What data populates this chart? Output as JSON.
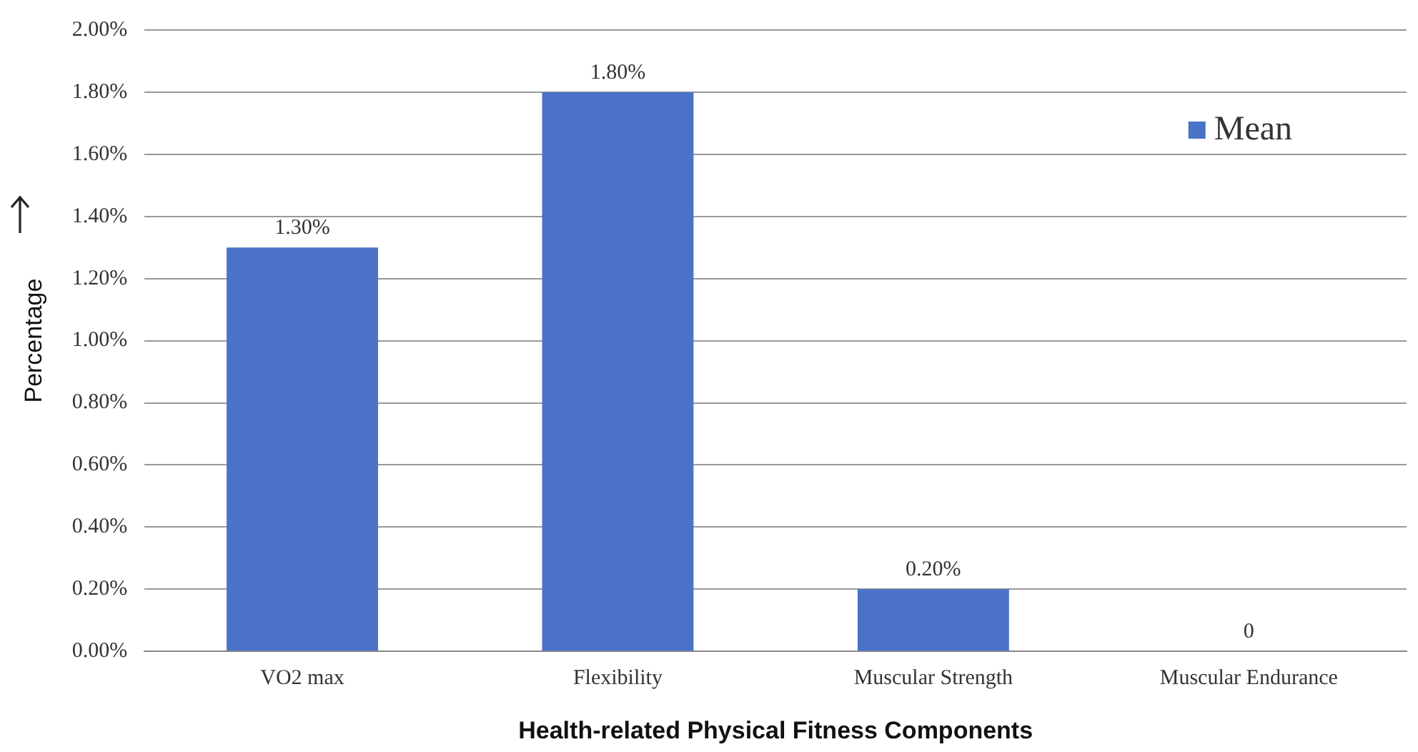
{
  "chart_data": {
    "type": "bar",
    "xlabel": "Health-related Physical Fitness Components",
    "ylabel": "Percentage",
    "categories": [
      "VO2 max",
      "Flexibility",
      "Muscular Strength",
      "Muscular Endurance"
    ],
    "series": [
      {
        "name": "Mean",
        "color": "#4a72c6",
        "values": [
          1.3,
          1.8,
          0.2,
          0
        ],
        "value_labels": [
          "1.30%",
          "1.80%",
          "0.20%",
          "0"
        ]
      }
    ],
    "ylim": [
      0,
      2
    ],
    "yticks": [
      {
        "value": 0,
        "label": "0.00%"
      },
      {
        "value": 0.2,
        "label": "0.20%"
      },
      {
        "value": 0.4,
        "label": "0.40%"
      },
      {
        "value": 0.6,
        "label": "0.60%"
      },
      {
        "value": 0.8,
        "label": "0.80%"
      },
      {
        "value": 1,
        "label": "1.00%"
      },
      {
        "value": 1.2,
        "label": "1.20%"
      },
      {
        "value": 1.4,
        "label": "1.40%"
      },
      {
        "value": 1.6,
        "label": "1.60%"
      },
      {
        "value": 1.8,
        "label": "1.80%"
      },
      {
        "value": 2,
        "label": "2.00%"
      }
    ],
    "grid": "y",
    "legend": "top right"
  }
}
